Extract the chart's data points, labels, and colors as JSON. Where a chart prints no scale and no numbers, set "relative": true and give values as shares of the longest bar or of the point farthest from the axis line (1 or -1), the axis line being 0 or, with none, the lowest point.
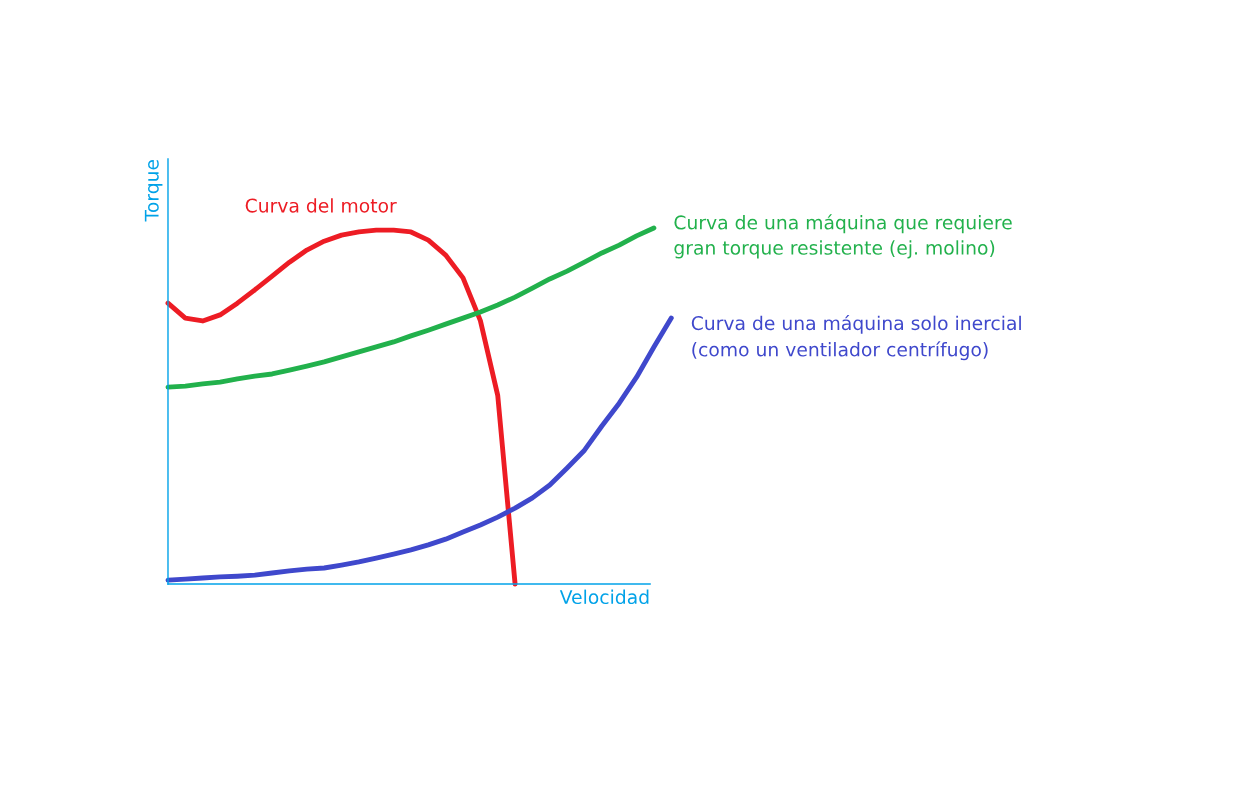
{
  "chart_data": {
    "type": "line",
    "relative": true,
    "xlabel": "Velocidad",
    "ylabel": "Torque",
    "tick_labels": false,
    "legend": false,
    "categories": [
      null,
      null,
      null,
      null,
      null,
      null,
      null,
      null,
      null,
      null,
      null,
      null,
      null,
      null,
      null,
      null,
      null,
      null,
      null,
      null,
      null,
      null,
      null,
      null,
      null,
      null,
      null,
      null,
      null,
      null
    ],
    "series": [
      {
        "name": "Curva del motor",
        "color": "#ed1c24",
        "values": [
          0.789,
          0.747,
          0.739,
          0.756,
          0.789,
          0.826,
          0.865,
          0.904,
          0.938,
          0.963,
          0.98,
          0.989,
          0.994,
          0.994,
          0.989,
          0.966,
          0.924,
          0.86,
          0.74,
          0.53,
          0,
          null,
          null,
          null,
          null,
          null,
          null,
          null,
          null,
          null
        ]
      },
      {
        "name": "Curva de una máquina que requiere\ngran torque resistente (ej. molino)",
        "color": "#22b14c",
        "values": [
          0.553,
          0.556,
          0.562,
          0.567,
          0.576,
          0.584,
          0.59,
          0.601,
          0.612,
          0.624,
          0.638,
          0.652,
          0.666,
          0.68,
          0.697,
          0.713,
          0.73,
          0.747,
          0.764,
          0.784,
          0.806,
          0.831,
          0.857,
          0.879,
          0.904,
          0.93,
          0.952,
          0.978,
          1.0,
          null
        ]
      },
      {
        "name": "Curva de una máquina solo inercial\n(como un ventilador centrífugo)",
        "color": "#3f48cc",
        "values": [
          0.011,
          0.014,
          0.017,
          0.02,
          0.022,
          0.025,
          0.031,
          0.037,
          0.042,
          0.045,
          0.053,
          0.062,
          0.073,
          0.084,
          0.096,
          0.11,
          0.126,
          0.146,
          0.166,
          0.188,
          0.213,
          0.242,
          0.278,
          0.326,
          0.376,
          0.444,
          0.508,
          0.581,
          0.666,
          0.747
        ]
      }
    ]
  }
}
